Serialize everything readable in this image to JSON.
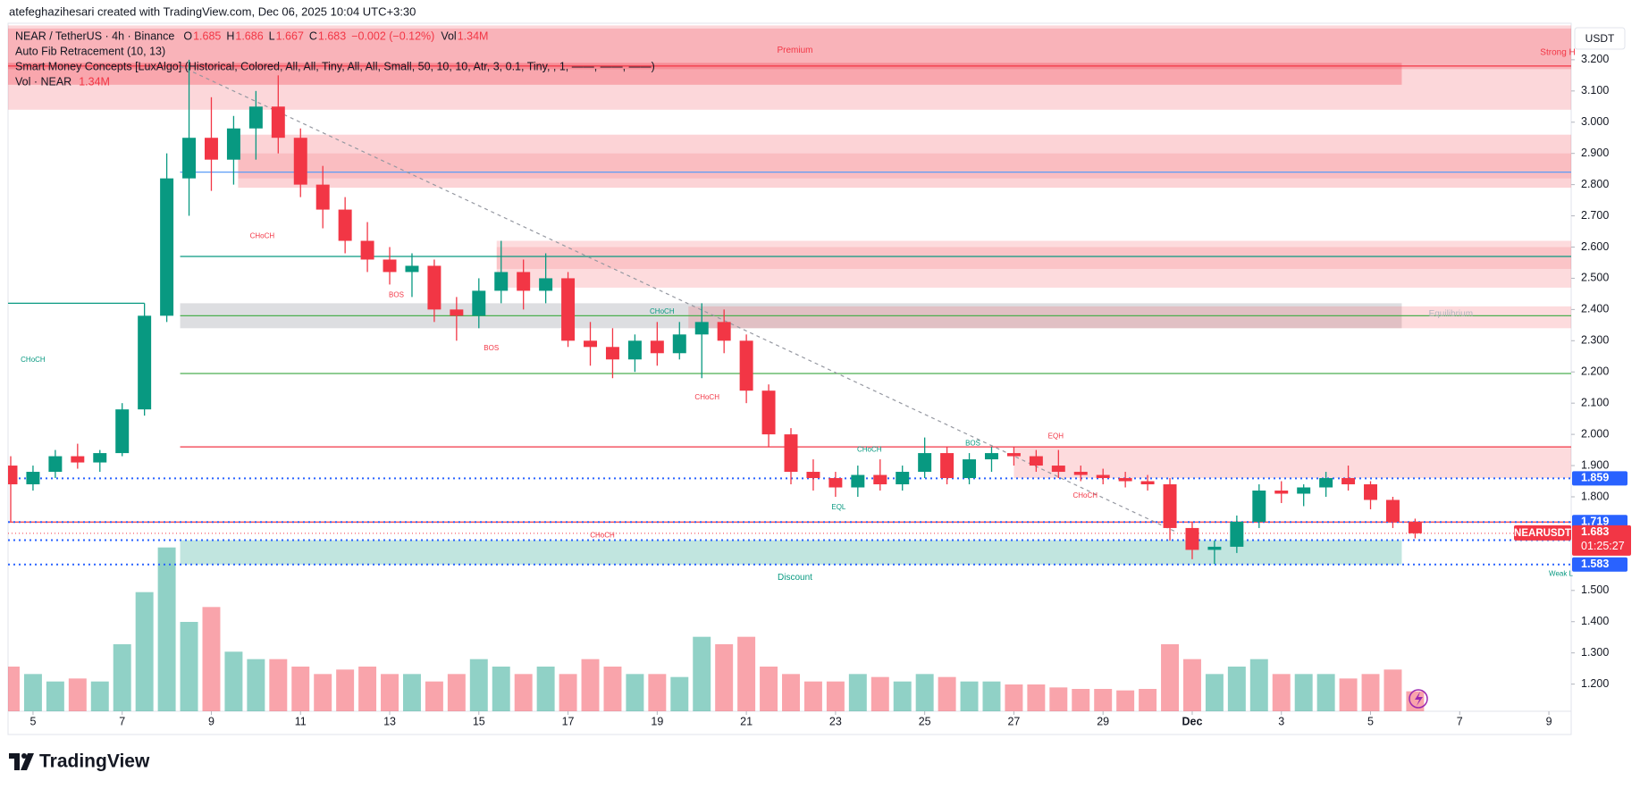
{
  "header": "atefeghazihesari created with TradingView.com, Dec 06, 2025 10:04 UTC+3:30",
  "legend": {
    "symbol": "NEAR / TetherUS · 4h · Binance",
    "items": [
      {
        "label": "O",
        "value": 1.685
      },
      {
        "label": "H",
        "value": 1.686
      },
      {
        "label": "L",
        "value": 1.667
      },
      {
        "label": "C",
        "value": 1.683
      }
    ],
    "change": "−0.002 (−0.12%)",
    "volume_label": "Vol",
    "volume": "1.34M",
    "indicators": [
      "Auto Fib Retracement (10, 13)",
      "Smart Money Concepts [LuxAlgo] (Historical, Colored, All, All, Tiny, All, All, Small, 50, 10, 10, Atr, 3, 0.1, Tiny, , 1, ——, ——, ——)"
    ],
    "vol_indicator": "Vol · NEAR",
    "vol_indicator_value": "1.34M"
  },
  "brand": "TradingView",
  "chart_data": {
    "type": "candlestick",
    "currency": "USDT",
    "up_color": "#089981",
    "down_color": "#f23645",
    "xlim": [
      0.44,
      35.5
    ],
    "xticks": [
      {
        "value": 1,
        "label": "5"
      },
      {
        "value": 3,
        "label": "7"
      },
      {
        "value": 5,
        "label": "9"
      },
      {
        "value": 7,
        "label": "11"
      },
      {
        "value": 9,
        "label": "13"
      },
      {
        "value": 11,
        "label": "15"
      },
      {
        "value": 13,
        "label": "17"
      },
      {
        "value": 15,
        "label": "19"
      },
      {
        "value": 17,
        "label": "21"
      },
      {
        "value": 19,
        "label": "23"
      },
      {
        "value": 21,
        "label": "25"
      },
      {
        "value": 23,
        "label": "27"
      },
      {
        "value": 25,
        "label": "29"
      },
      {
        "value": 27,
        "label": "Dec"
      },
      {
        "value": 29,
        "label": "3"
      },
      {
        "value": 31,
        "label": "5"
      },
      {
        "value": 33,
        "label": "7"
      },
      {
        "value": 35,
        "label": "9"
      }
    ],
    "ylim": [
      1.113,
      3.317
    ],
    "yticks": [
      {
        "value": 3.2,
        "label": "3.200"
      },
      {
        "value": 3.1,
        "label": "3.100"
      },
      {
        "value": 3.0,
        "label": "3.000"
      },
      {
        "value": 2.9,
        "label": "2.900"
      },
      {
        "value": 2.8,
        "label": "2.800"
      },
      {
        "value": 2.7,
        "label": "2.700"
      },
      {
        "value": 2.6,
        "label": "2.600"
      },
      {
        "value": 2.5,
        "label": "2.500"
      },
      {
        "value": 2.4,
        "label": "2.400"
      },
      {
        "value": 2.3,
        "label": "2.300"
      },
      {
        "value": 2.2,
        "label": "2.200"
      },
      {
        "value": 2.1,
        "label": "2.100"
      },
      {
        "value": 2.0,
        "label": "2.000"
      },
      {
        "value": 1.9,
        "label": "1.900"
      },
      {
        "value": 1.8,
        "label": "1.800"
      },
      {
        "value": 1.5,
        "label": "1.500"
      },
      {
        "value": 1.4,
        "label": "1.400"
      },
      {
        "value": 1.3,
        "label": "1.300"
      },
      {
        "value": 1.2,
        "label": "1.200"
      }
    ],
    "vlim": [
      0,
      12
    ],
    "x": [
      0.5,
      1,
      1.5,
      2,
      2.5,
      3,
      3.5,
      4,
      4.5,
      5,
      5.5,
      6,
      6.5,
      7,
      7.5,
      8,
      8.5,
      9,
      9.5,
      10,
      10.5,
      11,
      11.5,
      12,
      12.5,
      13,
      13.5,
      14,
      14.5,
      15,
      15.5,
      16,
      16.5,
      17,
      17.5,
      18,
      18.5,
      19,
      19.5,
      20,
      20.5,
      21,
      21.5,
      22,
      22.5,
      23,
      23.5,
      24,
      24.5,
      25,
      25.5,
      26,
      26.5,
      27,
      27.5,
      28,
      28.5,
      29,
      29.5,
      30,
      30.5,
      31,
      31.5,
      32
    ],
    "open": [
      1.9,
      1.84,
      1.88,
      1.93,
      1.91,
      1.94,
      2.08,
      2.38,
      2.82,
      2.95,
      2.88,
      2.98,
      3.05,
      2.95,
      2.8,
      2.72,
      2.62,
      2.56,
      2.52,
      2.54,
      2.4,
      2.38,
      2.46,
      2.52,
      2.46,
      2.5,
      2.3,
      2.28,
      2.24,
      2.3,
      2.26,
      2.32,
      2.36,
      2.3,
      2.14,
      2.0,
      1.88,
      1.86,
      1.83,
      1.87,
      1.84,
      1.88,
      1.94,
      1.86,
      1.92,
      1.94,
      1.93,
      1.9,
      1.88,
      1.87,
      1.86,
      1.85,
      1.84,
      1.7,
      1.63,
      1.64,
      1.72,
      1.82,
      1.81,
      1.83,
      1.86,
      1.84,
      1.79,
      1.72
    ],
    "high": [
      1.93,
      1.9,
      1.95,
      1.97,
      1.95,
      2.1,
      2.42,
      2.9,
      3.2,
      3.08,
      3.02,
      3.1,
      3.15,
      2.98,
      2.86,
      2.76,
      2.68,
      2.6,
      2.58,
      2.56,
      2.44,
      2.5,
      2.62,
      2.56,
      2.58,
      2.52,
      2.36,
      2.34,
      2.32,
      2.36,
      2.36,
      2.42,
      2.4,
      2.32,
      2.16,
      2.02,
      1.92,
      1.88,
      1.9,
      1.92,
      1.9,
      1.99,
      1.96,
      1.94,
      1.96,
      1.96,
      1.95,
      1.95,
      1.9,
      1.89,
      1.88,
      1.87,
      1.86,
      1.72,
      1.66,
      1.74,
      1.84,
      1.85,
      1.84,
      1.88,
      1.9,
      1.85,
      1.8,
      1.73
    ],
    "low": [
      1.72,
      1.82,
      1.86,
      1.89,
      1.88,
      1.93,
      2.06,
      2.36,
      2.7,
      2.78,
      2.8,
      2.88,
      2.9,
      2.76,
      2.66,
      2.58,
      2.52,
      2.48,
      2.44,
      2.36,
      2.3,
      2.34,
      2.42,
      2.4,
      2.42,
      2.28,
      2.22,
      2.18,
      2.2,
      2.22,
      2.24,
      2.18,
      2.26,
      2.1,
      1.96,
      1.84,
      1.82,
      1.8,
      1.8,
      1.82,
      1.82,
      1.86,
      1.84,
      1.84,
      1.88,
      1.9,
      1.88,
      1.86,
      1.85,
      1.84,
      1.83,
      1.82,
      1.66,
      1.6,
      1.585,
      1.62,
      1.7,
      1.78,
      1.77,
      1.8,
      1.82,
      1.76,
      1.7,
      1.667
    ],
    "close": [
      1.84,
      1.88,
      1.93,
      1.91,
      1.94,
      2.08,
      2.38,
      2.82,
      2.95,
      2.88,
      2.98,
      3.05,
      2.95,
      2.8,
      2.72,
      2.62,
      2.56,
      2.52,
      2.54,
      2.4,
      2.38,
      2.46,
      2.52,
      2.46,
      2.5,
      2.3,
      2.28,
      2.24,
      2.3,
      2.26,
      2.32,
      2.36,
      2.3,
      2.14,
      2.0,
      1.88,
      1.86,
      1.83,
      1.87,
      1.84,
      1.88,
      1.94,
      1.86,
      1.92,
      1.94,
      1.93,
      1.9,
      1.88,
      1.87,
      1.86,
      1.85,
      1.84,
      1.7,
      1.63,
      1.64,
      1.72,
      1.82,
      1.81,
      1.83,
      1.86,
      1.84,
      1.79,
      1.72,
      1.683
    ],
    "volume": [
      3,
      2.5,
      2,
      2.2,
      2,
      4.5,
      8,
      11,
      6,
      7,
      4,
      3.5,
      3.5,
      3,
      2.5,
      2.8,
      3,
      2.5,
      2.5,
      2,
      2.5,
      3.5,
      3,
      2.5,
      3,
      2.5,
      3.5,
      3,
      2.5,
      2.5,
      2.3,
      5,
      4.5,
      5,
      3,
      2.5,
      2,
      2,
      2.5,
      2.3,
      2,
      2.5,
      2.3,
      2,
      2,
      1.8,
      1.8,
      1.6,
      1.5,
      1.5,
      1.4,
      1.5,
      4.5,
      3.5,
      2.5,
      3,
      3.5,
      2.5,
      2.5,
      2.5,
      2.2,
      2.5,
      2.8,
      1.34
    ],
    "zones": [
      {
        "x": [
          0.44,
          35.5
        ],
        "y": [
          3.04,
          3.31
        ],
        "color": "rgba(242,54,69,0.2)"
      },
      {
        "x": [
          0.44,
          35.5
        ],
        "y": [
          3.17,
          3.3
        ],
        "color": "rgba(242,54,69,0.22)"
      },
      {
        "x": [
          0.44,
          31.7
        ],
        "y": [
          3.12,
          3.19
        ],
        "color": "rgba(242,54,69,0.3)"
      },
      {
        "x": [
          5.6,
          35.5
        ],
        "y": [
          2.79,
          2.96
        ],
        "color": "rgba(242,54,69,0.22)"
      },
      {
        "x": [
          5.6,
          35.5
        ],
        "y": [
          2.82,
          2.9
        ],
        "color": "rgba(242,54,69,0.14)"
      },
      {
        "x": [
          11.4,
          35.5
        ],
        "y": [
          2.47,
          2.62
        ],
        "color": "rgba(242,54,69,0.18)"
      },
      {
        "x": [
          11.4,
          35.5
        ],
        "y": [
          2.53,
          2.6
        ],
        "color": "rgba(242,54,69,0.14)"
      },
      {
        "x": [
          4.3,
          31.7
        ],
        "y": [
          2.34,
          2.42
        ],
        "color": "rgba(120,123,134,0.25)"
      },
      {
        "x": [
          15.7,
          35.5
        ],
        "y": [
          2.34,
          2.41
        ],
        "color": "rgba(242,54,69,0.18)"
      },
      {
        "x": [
          23.0,
          35.5
        ],
        "y": [
          1.86,
          1.96
        ],
        "color": "rgba(242,54,69,0.18)"
      },
      {
        "x": [
          4.3,
          31.7
        ],
        "y": [
          1.583,
          1.661
        ],
        "color": "rgba(8,153,129,0.25)"
      }
    ],
    "lines": [
      {
        "x": [
          0.44,
          35.5
        ],
        "y": 3.18,
        "color": "#f23645"
      },
      {
        "x": [
          4.3,
          35.5
        ],
        "y": 2.84,
        "color": "#5b9cf6"
      },
      {
        "x": [
          4.3,
          35.5
        ],
        "y": 2.57,
        "color": "#089981"
      },
      {
        "x": [
          4.3,
          35.5
        ],
        "y": 2.38,
        "color": "#4caf50"
      },
      {
        "x": [
          4.3,
          35.5
        ],
        "y": 2.195,
        "color": "#4caf50"
      },
      {
        "x": [
          4.3,
          35.5
        ],
        "y": 1.96,
        "color": "#f23645"
      },
      {
        "x": [
          0.44,
          35.5
        ],
        "y": 1.719,
        "color": "#f23645"
      },
      {
        "x": [
          0.44,
          3.5
        ],
        "y": 2.42,
        "color": "#089981"
      }
    ],
    "trendline": {
      "x": [
        4.3,
        26.6
      ],
      "y": [
        3.18,
        1.69
      ],
      "color": "#9598a1"
    },
    "levels": [
      {
        "value": 1.859,
        "color": "#2962ff"
      },
      {
        "value": 1.719,
        "color": "#2962ff"
      },
      {
        "value": 1.661,
        "color": "#2962ff"
      },
      {
        "value": 1.583,
        "color": "#2962ff"
      }
    ],
    "last_price": {
      "value": 1.683,
      "symbol": "NEARUSDT",
      "countdown": "01:25:27",
      "color": "#f23645"
    },
    "annotations": [
      {
        "text": "Premium",
        "x": 18.09,
        "y": 3.23,
        "color": "#f23645"
      },
      {
        "text": "Discount",
        "x": 18.09,
        "y": 1.542,
        "color": "#089981"
      },
      {
        "text": "Equilibrium",
        "x": 32.8,
        "y": 2.386,
        "color": "#b2b5be"
      },
      {
        "text": "CHoCH",
        "x": 1.0,
        "y": 2.238,
        "color": "#089981"
      },
      {
        "text": "CHoCH",
        "x": 6.14,
        "y": 2.634,
        "color": "#f23645"
      },
      {
        "text": "BOS",
        "x": 9.15,
        "y": 2.446,
        "color": "#f23645"
      },
      {
        "text": "BOS",
        "x": 11.28,
        "y": 2.275,
        "color": "#f23645"
      },
      {
        "text": "CHoCH",
        "x": 15.11,
        "y": 2.393,
        "color": "#089981"
      },
      {
        "text": "CHoCH",
        "x": 16.12,
        "y": 2.118,
        "color": "#f23645"
      },
      {
        "text": "CHoCH",
        "x": 19.76,
        "y": 1.95,
        "color": "#089981"
      },
      {
        "text": "BOS",
        "x": 22.08,
        "y": 1.97,
        "color": "#089981"
      },
      {
        "text": "EQH",
        "x": 23.94,
        "y": 1.994,
        "color": "#f23645"
      },
      {
        "text": "EQL",
        "x": 19.07,
        "y": 1.766,
        "color": "#089981"
      },
      {
        "text": "CHoCH",
        "x": 24.6,
        "y": 1.803,
        "color": "#f23645"
      },
      {
        "text": "CHoCH",
        "x": 13.77,
        "y": 1.676,
        "color": "#f23645"
      },
      {
        "text": "Strong H",
        "x": 35.2,
        "y": 3.223,
        "color": "#f23645"
      },
      {
        "text": "Weak L",
        "x": 35.27,
        "y": 1.552,
        "color": "#089981"
      }
    ]
  }
}
